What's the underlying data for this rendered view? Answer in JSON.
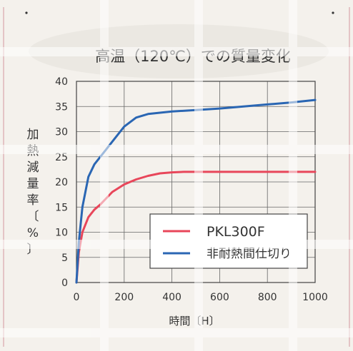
{
  "chart_data": {
    "type": "line",
    "title": "高温（120℃）での質量変化",
    "xlabel": "時間〔H〕",
    "ylabel": "加熱減量率〔%〕",
    "xlim": [
      0,
      1000
    ],
    "ylim": [
      0,
      40
    ],
    "xticks": [
      0,
      200,
      400,
      600,
      800,
      1000
    ],
    "yticks": [
      0,
      5,
      10,
      15,
      20,
      25,
      30,
      35,
      40
    ],
    "grid": true,
    "legend_position": "bottom-right",
    "series": [
      {
        "name": "PKL300F",
        "color": "#e8465a",
        "x": [
          0,
          10,
          25,
          50,
          75,
          100,
          150,
          200,
          250,
          300,
          350,
          400,
          450,
          500,
          600,
          700,
          800,
          900,
          1000
        ],
        "y": [
          0,
          6,
          10,
          13,
          14.5,
          15.5,
          18,
          19.5,
          20.5,
          21.2,
          21.7,
          21.9,
          22,
          22,
          22,
          22,
          22,
          22,
          22
        ]
      },
      {
        "name": "非耐熱間仕切り",
        "color": "#2a66b3",
        "x": [
          0,
          10,
          25,
          50,
          75,
          100,
          125,
          150,
          200,
          250,
          300,
          400,
          500,
          600,
          700,
          800,
          900,
          1000
        ],
        "y": [
          0,
          8,
          15,
          21,
          23.5,
          25,
          26.5,
          28,
          31,
          32.8,
          33.5,
          34,
          34.3,
          34.6,
          35,
          35.4,
          35.8,
          36.3
        ]
      }
    ]
  }
}
